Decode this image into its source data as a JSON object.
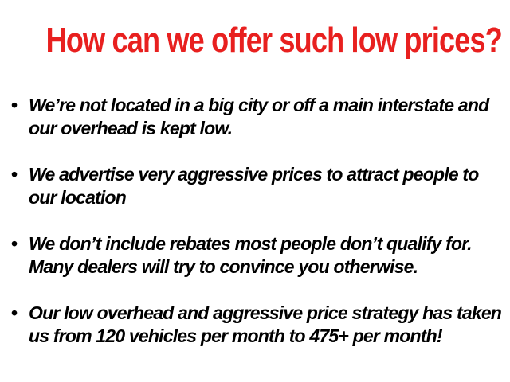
{
  "title": "How can we offer such low prices?",
  "bullets": [
    "We’re not located in a big city or off a main interstate and our overhead is kept low.",
    "We advertise very aggressive prices to attract people to our location",
    "We don’t include rebates most people don’t qualify for. Many dealers will try to convince you otherwise.",
    "Our low overhead and aggressive price strategy has taken us from 120 vehicles per month to 475+ per month!"
  ],
  "colors": {
    "title": "#e8201f",
    "text": "#000000"
  }
}
